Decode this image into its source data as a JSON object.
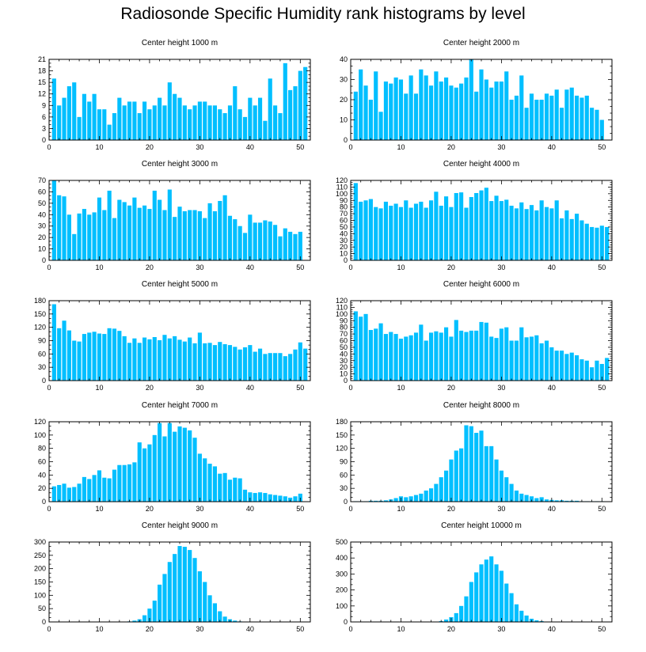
{
  "title": "Radiosonde Specific Humidity rank histograms by level",
  "bar_color": "#00BFFF",
  "chart_data": [
    {
      "type": "bar",
      "title": "Center height 1000 m",
      "xlabel": "",
      "ylabel": "",
      "xlim": [
        0,
        52
      ],
      "ylim": [
        0,
        21
      ],
      "yticks": [
        0,
        3,
        6,
        9,
        12,
        15,
        18,
        21
      ],
      "xticks": [
        0,
        10,
        20,
        30,
        40,
        50
      ],
      "values": [
        16,
        9,
        11,
        14,
        15,
        6,
        12,
        10,
        12,
        8,
        8,
        4,
        7,
        11,
        9,
        10,
        10,
        7,
        10,
        8,
        9,
        11,
        9,
        15,
        12,
        11,
        9,
        8,
        9,
        10,
        10,
        9,
        9,
        8,
        7,
        9,
        14,
        8,
        6,
        11,
        9,
        11,
        5,
        16,
        9,
        7,
        20,
        13,
        14,
        18,
        19
      ]
    },
    {
      "type": "bar",
      "title": "Center height 2000 m",
      "xlabel": "",
      "ylabel": "",
      "xlim": [
        0,
        52
      ],
      "ylim": [
        0,
        40
      ],
      "yticks": [
        0,
        10,
        20,
        30,
        40
      ],
      "xticks": [
        0,
        10,
        20,
        30,
        40,
        50
      ],
      "values": [
        24,
        35,
        27,
        20,
        34,
        14,
        29,
        28,
        31,
        30,
        23,
        32,
        23,
        35,
        32,
        27,
        34,
        29,
        31,
        27,
        26,
        28,
        31,
        40,
        24,
        35,
        30,
        26,
        29,
        29,
        34,
        20,
        22,
        32,
        16,
        23,
        20,
        20,
        23,
        22,
        25,
        16,
        25,
        26,
        22,
        21,
        22,
        16,
        15,
        10
      ]
    },
    {
      "type": "bar",
      "title": "Center height 3000 m",
      "xlabel": "",
      "ylabel": "",
      "xlim": [
        0,
        52
      ],
      "ylim": [
        0,
        70
      ],
      "yticks": [
        0,
        10,
        20,
        30,
        40,
        50,
        60,
        70
      ],
      "xticks": [
        0,
        10,
        20,
        30,
        40,
        50
      ],
      "values": [
        70,
        57,
        56,
        40,
        23,
        41,
        45,
        40,
        42,
        55,
        44,
        61,
        37,
        53,
        51,
        48,
        55,
        46,
        48,
        45,
        61,
        53,
        44,
        62,
        38,
        47,
        43,
        44,
        44,
        43,
        37,
        50,
        43,
        52,
        57,
        39,
        36,
        30,
        24,
        40,
        33,
        33,
        35,
        34,
        31,
        21,
        28,
        25,
        23,
        25
      ]
    },
    {
      "type": "bar",
      "title": "Center height 4000 m",
      "xlabel": "",
      "ylabel": "",
      "xlim": [
        0,
        52
      ],
      "ylim": [
        0,
        120
      ],
      "yticks": [
        0,
        10,
        20,
        30,
        40,
        50,
        60,
        70,
        80,
        90,
        100,
        110,
        120
      ],
      "xticks": [
        0,
        10,
        20,
        30,
        40,
        50
      ],
      "values": [
        116,
        88,
        90,
        92,
        80,
        78,
        88,
        82,
        85,
        80,
        90,
        79,
        85,
        88,
        79,
        90,
        103,
        82,
        96,
        80,
        101,
        102,
        79,
        95,
        101,
        105,
        109,
        89,
        97,
        89,
        91,
        82,
        78,
        87,
        77,
        83,
        75,
        90,
        80,
        78,
        90,
        63,
        75,
        62,
        70,
        60,
        55,
        50,
        49,
        52,
        50
      ]
    },
    {
      "type": "bar",
      "title": "Center height 5000 m",
      "xlabel": "",
      "ylabel": "",
      "xlim": [
        0,
        52
      ],
      "ylim": [
        0,
        180
      ],
      "yticks": [
        0,
        30,
        60,
        90,
        120,
        150,
        180
      ],
      "xticks": [
        0,
        10,
        20,
        30,
        40,
        50
      ],
      "values": [
        172,
        118,
        135,
        113,
        90,
        88,
        105,
        108,
        110,
        106,
        105,
        118,
        117,
        112,
        100,
        85,
        95,
        85,
        97,
        93,
        98,
        91,
        103,
        95,
        100,
        92,
        88,
        97,
        84,
        108,
        84,
        85,
        80,
        87,
        82,
        80,
        76,
        70,
        75,
        80,
        65,
        72,
        60,
        62,
        62,
        62,
        55,
        60,
        70,
        86,
        72
      ]
    },
    {
      "type": "bar",
      "title": "Center height 6000 m",
      "xlabel": "",
      "ylabel": "",
      "xlim": [
        0,
        52
      ],
      "ylim": [
        0,
        120
      ],
      "yticks": [
        0,
        10,
        20,
        30,
        40,
        50,
        60,
        70,
        80,
        90,
        100,
        110,
        120
      ],
      "xticks": [
        0,
        10,
        20,
        30,
        40,
        50
      ],
      "values": [
        104,
        96,
        100,
        76,
        78,
        86,
        70,
        73,
        70,
        63,
        66,
        68,
        72,
        84,
        60,
        72,
        74,
        72,
        80,
        66,
        91,
        75,
        73,
        75,
        75,
        88,
        87,
        66,
        64,
        78,
        80,
        60,
        60,
        80,
        65,
        66,
        68,
        56,
        60,
        50,
        45,
        45,
        40,
        42,
        38,
        32,
        30,
        20,
        30,
        25,
        34
      ]
    },
    {
      "type": "bar",
      "title": "Center height 7000 m",
      "xlabel": "",
      "ylabel": "",
      "xlim": [
        0,
        52
      ],
      "ylim": [
        0,
        120
      ],
      "yticks": [
        0,
        20,
        40,
        60,
        80,
        100,
        120
      ],
      "xticks": [
        0,
        10,
        20,
        30,
        40,
        50
      ],
      "values": [
        23,
        25,
        27,
        21,
        22,
        27,
        37,
        34,
        40,
        47,
        36,
        35,
        48,
        55,
        55,
        56,
        59,
        89,
        80,
        86,
        100,
        118,
        98,
        118,
        105,
        113,
        111,
        107,
        96,
        72,
        65,
        57,
        53,
        42,
        43,
        33,
        36,
        35,
        18,
        14,
        13,
        14,
        13,
        11,
        10,
        9,
        8,
        6,
        8,
        12
      ]
    },
    {
      "type": "bar",
      "title": "Center height 8000 m",
      "xlabel": "",
      "ylabel": "",
      "xlim": [
        0,
        52
      ],
      "ylim": [
        0,
        180
      ],
      "yticks": [
        0,
        30,
        60,
        90,
        120,
        150,
        180
      ],
      "xticks": [
        0,
        10,
        20,
        30,
        40,
        50
      ],
      "values": [
        1,
        1,
        1,
        2,
        2,
        2,
        3,
        5,
        8,
        12,
        10,
        12,
        15,
        18,
        25,
        30,
        40,
        55,
        70,
        95,
        115,
        120,
        172,
        170,
        155,
        160,
        125,
        125,
        95,
        70,
        55,
        40,
        25,
        18,
        15,
        12,
        8,
        10,
        5,
        4,
        3,
        3,
        2,
        2,
        2,
        1,
        1,
        1,
        1,
        1
      ]
    },
    {
      "type": "bar",
      "title": "Center height 9000 m",
      "xlabel": "",
      "ylabel": "",
      "xlim": [
        0,
        52
      ],
      "ylim": [
        0,
        300
      ],
      "yticks": [
        0,
        50,
        100,
        150,
        200,
        250,
        300
      ],
      "xticks": [
        0,
        10,
        20,
        30,
        40,
        50
      ],
      "values": [
        0,
        0,
        0,
        0,
        0,
        0,
        0,
        0,
        0,
        0,
        0,
        0,
        0,
        0,
        0,
        2,
        5,
        10,
        25,
        50,
        80,
        140,
        180,
        225,
        255,
        285,
        282,
        270,
        240,
        190,
        150,
        100,
        70,
        40,
        20,
        10,
        5,
        2,
        0,
        0,
        0,
        0,
        0,
        0,
        0,
        0,
        0,
        0,
        0,
        0
      ]
    },
    {
      "type": "bar",
      "title": "Center height 10000 m",
      "xlabel": "",
      "ylabel": "",
      "xlim": [
        0,
        52
      ],
      "ylim": [
        0,
        500
      ],
      "yticks": [
        0,
        100,
        200,
        300,
        400,
        500
      ],
      "xticks": [
        0,
        10,
        20,
        30,
        40,
        50
      ],
      "values": [
        0,
        0,
        0,
        0,
        0,
        0,
        0,
        0,
        0,
        0,
        0,
        0,
        0,
        0,
        0,
        0,
        2,
        5,
        15,
        30,
        55,
        100,
        160,
        250,
        310,
        360,
        390,
        410,
        360,
        320,
        240,
        180,
        110,
        70,
        40,
        20,
        10,
        5,
        2,
        0,
        0,
        0,
        0,
        0,
        0,
        0,
        0,
        0,
        0,
        0
      ]
    }
  ]
}
